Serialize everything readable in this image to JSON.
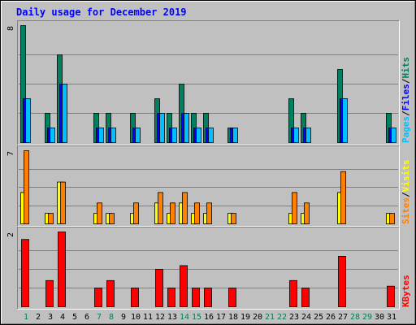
{
  "chart_data": {
    "type": "bar",
    "title": "Daily usage for December 2019",
    "categories": [
      "1",
      "2",
      "3",
      "4",
      "5",
      "6",
      "7",
      "8",
      "9",
      "10",
      "11",
      "12",
      "13",
      "14",
      "15",
      "16",
      "17",
      "18",
      "19",
      "20",
      "21",
      "22",
      "23",
      "24",
      "25",
      "26",
      "27",
      "28",
      "29",
      "30",
      "31"
    ],
    "weekend_days": [
      "1",
      "7",
      "8",
      "14",
      "15",
      "21",
      "22",
      "28",
      "29"
    ],
    "panels": [
      {
        "id": "hits-files-pages",
        "ymax": 8,
        "ytick_label": "8",
        "legend": [
          "Pages",
          "Files",
          "Hits"
        ],
        "series": [
          {
            "name": "Hits",
            "color": "#008060",
            "values": [
              8,
              0,
              2,
              6,
              0,
              0,
              2,
              2,
              0,
              2,
              0,
              3,
              2,
              4,
              2,
              2,
              0,
              1,
              0,
              0,
              0,
              0,
              3,
              2,
              0,
              0,
              5,
              0,
              0,
              0,
              2
            ]
          },
          {
            "name": "Files",
            "color": "#0000ff",
            "values": [
              3,
              0,
              1,
              4,
              0,
              0,
              1,
              1,
              0,
              1,
              0,
              2,
              1,
              2,
              1,
              1,
              0,
              1,
              0,
              0,
              0,
              0,
              1,
              1,
              0,
              0,
              3,
              0,
              0,
              0,
              1
            ]
          },
          {
            "name": "Pages",
            "color": "#00c0ff",
            "values": [
              3,
              0,
              1,
              4,
              0,
              0,
              1,
              1,
              0,
              1,
              0,
              2,
              1,
              2,
              1,
              1,
              0,
              1,
              0,
              0,
              0,
              0,
              1,
              1,
              0,
              0,
              3,
              0,
              0,
              0,
              1
            ]
          }
        ]
      },
      {
        "id": "visits-sites",
        "ymax": 7,
        "ytick_label": "7",
        "legend": [
          "Sites",
          "Visits"
        ],
        "series": [
          {
            "name": "Visits",
            "color": "#ffff00",
            "values": [
              3,
              0,
              1,
              4,
              0,
              0,
              1,
              1,
              0,
              1,
              0,
              2,
              1,
              2,
              1,
              1,
              0,
              1,
              0,
              0,
              0,
              0,
              1,
              1,
              0,
              0,
              3,
              0,
              0,
              0,
              1
            ]
          },
          {
            "name": "Sites",
            "color": "#ff8000",
            "values": [
              7,
              0,
              1,
              4,
              0,
              0,
              2,
              1,
              0,
              2,
              0,
              3,
              2,
              3,
              2,
              2,
              0,
              1,
              0,
              0,
              0,
              0,
              3,
              2,
              0,
              0,
              5,
              0,
              0,
              0,
              1
            ]
          }
        ]
      },
      {
        "id": "kbytes",
        "ymax": 2,
        "ytick_label": "2",
        "legend": [
          "KBytes"
        ],
        "series": [
          {
            "name": "KBytes",
            "color": "#ff0000",
            "values": [
              1.8,
              0,
              0.7,
              2.0,
              0,
              0,
              0.5,
              0.7,
              0,
              0.5,
              0,
              1.0,
              0.5,
              1.1,
              0.5,
              0.5,
              0,
              0.5,
              0,
              0,
              0,
              0,
              0.7,
              0.5,
              0,
              0,
              1.35,
              0,
              0,
              0,
              0.55
            ]
          }
        ]
      }
    ],
    "legend_separator": "/",
    "grid": true
  }
}
